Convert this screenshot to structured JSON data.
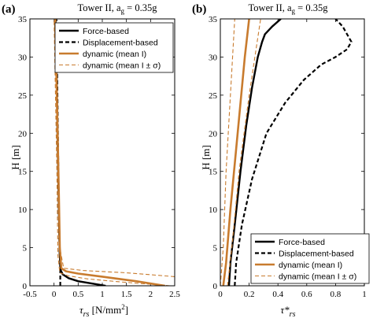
{
  "chart_data": [
    {
      "type": "line",
      "panel_label": "(a)",
      "title": "Tower II, a",
      "title_sub": "g",
      "title_tail": " = 0.35g",
      "xlabel": "τ",
      "xlabel_sub": "rs",
      "xlabel_unit": " [N/mm",
      "xlabel_sup": "2",
      "xlabel_close": "]",
      "ylabel": "H [m]",
      "xlim": [
        -0.5,
        2.5
      ],
      "ylim": [
        0,
        35
      ],
      "xticks": [
        "-0.5",
        "0",
        "0.5",
        "1",
        "1.5",
        "2",
        "2.5"
      ],
      "yticks": [
        "0",
        "5",
        "10",
        "15",
        "20",
        "25",
        "30",
        "35"
      ],
      "legend_position": "top-right",
      "series": [
        {
          "name": "Force-based",
          "color": "#000000",
          "style": "solid",
          "points": [
            [
              1.07,
              0
            ],
            [
              0.5,
              0.6
            ],
            [
              0.3,
              1.0
            ],
            [
              0.18,
              1.5
            ],
            [
              0.14,
              2.0
            ],
            [
              0.12,
              4
            ],
            [
              0.1,
              10
            ],
            [
              0.07,
              20
            ],
            [
              0.05,
              30
            ],
            [
              0.03,
              35
            ]
          ]
        },
        {
          "name": "Displacement-based",
          "color": "#000000",
          "style": "dashed",
          "points": [
            [
              0.13,
              0
            ],
            [
              0.13,
              2
            ],
            [
              0.11,
              6
            ],
            [
              0.09,
              15
            ],
            [
              0.07,
              25
            ],
            [
              0.05,
              35
            ]
          ]
        },
        {
          "name": "dynamic (mean I)",
          "color": "#c87b2e",
          "style": "solid",
          "points": [
            [
              2.3,
              0
            ],
            [
              1.7,
              0.6
            ],
            [
              1.0,
              1.2
            ],
            [
              0.5,
              1.6
            ],
            [
              0.25,
              1.9
            ],
            [
              0.15,
              2.3
            ],
            [
              0.12,
              5
            ],
            [
              0.1,
              12
            ],
            [
              0.06,
              25
            ],
            [
              0.02,
              35
            ]
          ]
        },
        {
          "name": "dynamic (mean I ± σ)",
          "color": "#c87b2e",
          "style": "dashed-thin",
          "points": [
            [
              2.5,
              1.2
            ],
            [
              1.5,
              1.7
            ],
            [
              0.6,
              2.0
            ],
            [
              0.2,
              2.3
            ],
            [
              0.12,
              5
            ],
            [
              0.08,
              15
            ],
            [
              0.04,
              35
            ]
          ]
        },
        {
          "name": "",
          "color": "#c87b2e",
          "style": "dashed-thin",
          "points": [
            [
              2.4,
              0
            ],
            [
              1.4,
              0.5
            ],
            [
              0.7,
              0.9
            ],
            [
              0.3,
              1.3
            ],
            [
              0.12,
              1.7
            ],
            [
              0.08,
              4
            ],
            [
              0.06,
              15
            ],
            [
              0.0,
              35
            ]
          ]
        }
      ]
    },
    {
      "type": "line",
      "panel_label": "(b)",
      "title": "Tower II, a",
      "title_sub": "g",
      "title_tail": " = 0.35g",
      "xlabel": "τ*",
      "xlabel_sub": "rs",
      "ylabel": "H [m]",
      "xlim": [
        0,
        1
      ],
      "ylim": [
        0,
        35
      ],
      "xticks": [
        "0",
        "0.2",
        "0.4",
        "0.6",
        "0.8",
        "1"
      ],
      "yticks": [
        "0",
        "5",
        "10",
        "15",
        "20",
        "25",
        "30",
        "35"
      ],
      "legend_position": "bottom-right",
      "series": [
        {
          "name": "Force-based",
          "color": "#000000",
          "style": "solid",
          "points": [
            [
              0.06,
              0
            ],
            [
              0.07,
              3
            ],
            [
              0.1,
              8
            ],
            [
              0.14,
              15
            ],
            [
              0.18,
              21
            ],
            [
              0.22,
              26
            ],
            [
              0.26,
              30
            ],
            [
              0.29,
              32
            ],
            [
              0.31,
              33
            ],
            [
              0.36,
              34
            ],
            [
              0.42,
              35
            ]
          ]
        },
        {
          "name": "Displacement-based",
          "color": "#000000",
          "style": "dashed",
          "points": [
            [
              0.1,
              0
            ],
            [
              0.11,
              3
            ],
            [
              0.15,
              8
            ],
            [
              0.22,
              14
            ],
            [
              0.32,
              20
            ],
            [
              0.45,
              24
            ],
            [
              0.58,
              27
            ],
            [
              0.7,
              29
            ],
            [
              0.8,
              30
            ],
            [
              0.88,
              31
            ],
            [
              0.91,
              32
            ],
            [
              0.85,
              34
            ],
            [
              0.8,
              35
            ]
          ]
        },
        {
          "name": "dynamic (mean I)",
          "color": "#c87b2e",
          "style": "solid",
          "points": [
            [
              0.02,
              0
            ],
            [
              0.04,
              3
            ],
            [
              0.07,
              10
            ],
            [
              0.12,
              20
            ],
            [
              0.17,
              30
            ],
            [
              0.2,
              35
            ]
          ]
        },
        {
          "name": "dynamic (mean I ± σ)",
          "color": "#c87b2e",
          "style": "dashed-thin",
          "points": [
            [
              0.0,
              0
            ],
            [
              0.02,
              5
            ],
            [
              0.04,
              15
            ],
            [
              0.07,
              25
            ],
            [
              0.1,
              35
            ]
          ]
        },
        {
          "name": "",
          "color": "#c87b2e",
          "style": "dashed-thin",
          "points": [
            [
              0.05,
              0
            ],
            [
              0.08,
              5
            ],
            [
              0.13,
              15
            ],
            [
              0.2,
              25
            ],
            [
              0.28,
              35
            ]
          ]
        }
      ]
    }
  ]
}
